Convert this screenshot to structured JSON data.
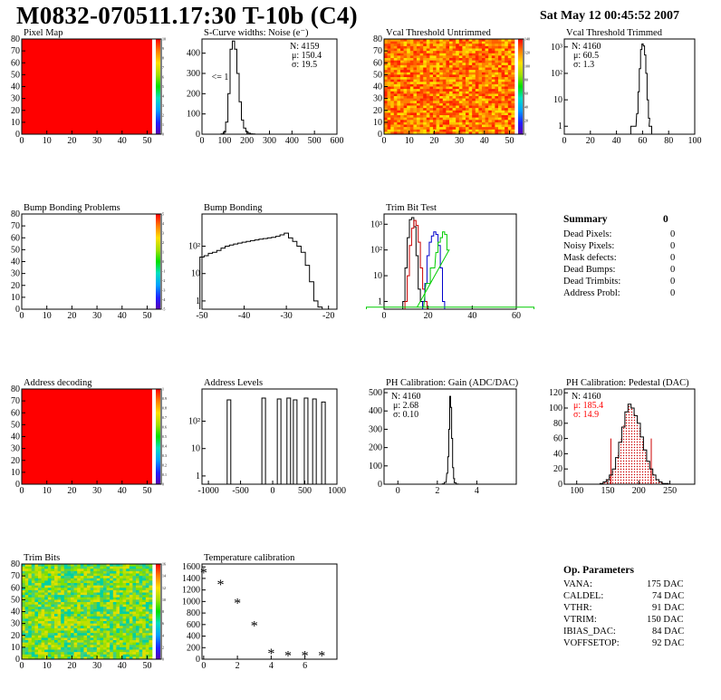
{
  "header": {
    "title": "M0832-070511.17:30 T-10b (C4)",
    "date": "Sat May 12 00:45:52 2007"
  },
  "colors": {
    "hist_line": "#000000",
    "heat_red": "#ff0000",
    "green_series": "#00cc00",
    "red_series": "#cc0000",
    "blue_series": "#0000cc",
    "stat_red": "#ff0000"
  },
  "summary": {
    "title": "Summary",
    "total": "0",
    "rows": [
      {
        "label": "Dead Pixels:",
        "value": "0"
      },
      {
        "label": "Noisy Pixels:",
        "value": "0"
      },
      {
        "label": "Mask defects:",
        "value": "0"
      },
      {
        "label": "Dead Bumps:",
        "value": "0"
      },
      {
        "label": "Dead Trimbits:",
        "value": "0"
      },
      {
        "label": "Address Probl:",
        "value": "0"
      }
    ]
  },
  "op_params": {
    "title": "Op. Parameters",
    "rows": [
      {
        "label": "VANA:",
        "value": "175 DAC"
      },
      {
        "label": "CALDEL:",
        "value": "74 DAC"
      },
      {
        "label": "VTHR:",
        "value": "91 DAC"
      },
      {
        "label": "VTRIM:",
        "value": "150 DAC"
      },
      {
        "label": "IBIAS_DAC:",
        "value": "84 DAC"
      },
      {
        "label": "VOFFSETOP:",
        "value": "92 DAC"
      }
    ]
  },
  "chart_data": [
    {
      "id": "pixel-map",
      "type": "heatmap",
      "title": "Pixel Map",
      "xlim": [
        0,
        52
      ],
      "ylim": [
        0,
        80
      ],
      "xticks": [
        "0",
        "10",
        "20",
        "30",
        "40",
        "50"
      ],
      "yticks": [
        "0",
        "10",
        "20",
        "30",
        "40",
        "50",
        "60",
        "70",
        "80"
      ],
      "fill": "uniform-red",
      "zlim": [
        0,
        10
      ],
      "zticks": [
        "0",
        "1",
        "2",
        "3",
        "4",
        "5",
        "6",
        "7",
        "8",
        "9",
        "10"
      ]
    },
    {
      "id": "scurve",
      "type": "bar",
      "title": "S-Curve widths: Noise (e⁻)",
      "xlim": [
        0,
        600
      ],
      "ylim": [
        0,
        470
      ],
      "xticks": [
        "0",
        "100",
        "200",
        "300",
        "400",
        "500",
        "600"
      ],
      "yticks": [
        "0",
        "100",
        "200",
        "300",
        "400"
      ],
      "stats": {
        "n": "N: 4159",
        "mu": "μ: 150.4",
        "sigma": "σ: 19.5"
      },
      "annotation": "<= 1",
      "x": [
        90,
        100,
        110,
        120,
        130,
        140,
        150,
        160,
        170,
        180,
        190,
        200,
        210,
        220,
        230
      ],
      "values": [
        2,
        10,
        60,
        200,
        420,
        460,
        420,
        300,
        160,
        70,
        30,
        12,
        5,
        2,
        1
      ]
    },
    {
      "id": "vcal-untrimmed",
      "type": "heatmap",
      "title": "Vcal Threshold Untrimmed",
      "xlim": [
        0,
        52
      ],
      "ylim": [
        0,
        80
      ],
      "xticks": [
        "0",
        "10",
        "20",
        "30",
        "40",
        "50"
      ],
      "yticks": [
        "0",
        "10",
        "20",
        "30",
        "40",
        "50",
        "60",
        "70",
        "80"
      ],
      "fill": "noisy-orange",
      "zlim": [
        0,
        140
      ],
      "zticks": [
        "0",
        "20",
        "40",
        "60",
        "80",
        "100",
        "120",
        "140"
      ]
    },
    {
      "id": "vcal-trimmed",
      "type": "bar",
      "title": "Vcal Threshold Trimmed",
      "log": true,
      "xlim": [
        0,
        100
      ],
      "ylim": [
        0.5,
        2000
      ],
      "xticks": [
        "0",
        "20",
        "40",
        "60",
        "80",
        "100"
      ],
      "yticks": [
        "1",
        "10",
        "10²",
        "10³"
      ],
      "stats": {
        "n": "N: 4160",
        "mu": "μ: 60.5",
        "sigma": "σ:  1.3"
      },
      "x": [
        52,
        54,
        56,
        57,
        58,
        59,
        60,
        61,
        62,
        63,
        64,
        65,
        66
      ],
      "values": [
        1,
        1,
        3,
        20,
        150,
        800,
        1300,
        1100,
        500,
        100,
        10,
        2,
        1
      ]
    },
    {
      "id": "bump-problems",
      "type": "heatmap",
      "title": "Bump Bonding Problems",
      "xlim": [
        0,
        52
      ],
      "ylim": [
        0,
        80
      ],
      "xticks": [
        "0",
        "10",
        "20",
        "30",
        "40",
        "50"
      ],
      "yticks": [
        "0",
        "10",
        "20",
        "30",
        "40",
        "50",
        "60",
        "70",
        "80"
      ],
      "fill": "empty",
      "zlim": [
        -5,
        5
      ],
      "zticks": [
        "-5",
        "-4",
        "-3",
        "-2",
        "-1",
        "0",
        "1",
        "2",
        "3",
        "4",
        "5"
      ]
    },
    {
      "id": "bump-bonding",
      "type": "bar",
      "title": "Bump Bonding",
      "log": true,
      "xlim": [
        -50,
        -18
      ],
      "ylim": [
        0.5,
        1500
      ],
      "xticks": [
        "-50",
        "-40",
        "-30",
        "-20"
      ],
      "yticks": [
        "1",
        "10",
        "10²"
      ],
      "x": [
        -50,
        -49,
        -48,
        -47,
        -46,
        -45,
        -44,
        -43,
        -42,
        -41,
        -40,
        -39,
        -38,
        -37,
        -36,
        -35,
        -34,
        -33,
        -32,
        -31,
        -30,
        -29,
        -28,
        -27,
        -26,
        -25,
        -24,
        -23,
        -22
      ],
      "values": [
        40,
        45,
        55,
        60,
        70,
        85,
        100,
        110,
        120,
        130,
        140,
        150,
        160,
        170,
        180,
        190,
        200,
        210,
        230,
        260,
        300,
        200,
        150,
        100,
        60,
        20,
        5,
        1,
        0.6
      ]
    },
    {
      "id": "trim-bit-test",
      "type": "line",
      "title": "Trim Bit Test",
      "log": true,
      "xlim": [
        0,
        60
      ],
      "ylim": [
        0.5,
        2500
      ],
      "xticks": [
        "0",
        "20",
        "40",
        "60"
      ],
      "yticks": [
        "1",
        "10",
        "10²",
        "10³"
      ],
      "series": [
        {
          "color": "#000000",
          "x": [
            9,
            10,
            11,
            12,
            13,
            14,
            15,
            16,
            17
          ],
          "values": [
            1,
            20,
            300,
            1500,
            1800,
            800,
            60,
            3,
            1
          ]
        },
        {
          "color": "#cc0000",
          "x": [
            10,
            11,
            12,
            13,
            14,
            15,
            16,
            17,
            18,
            19
          ],
          "values": [
            1,
            10,
            150,
            700,
            1400,
            900,
            200,
            20,
            3,
            1
          ]
        },
        {
          "color": "#0000cc",
          "x": [
            18,
            19,
            20,
            21,
            22,
            23,
            24,
            25,
            26,
            27
          ],
          "values": [
            1,
            5,
            60,
            200,
            350,
            500,
            400,
            150,
            20,
            1
          ]
        },
        {
          "color": "#00cc00",
          "x": [
            0,
            16,
            20,
            22,
            24,
            25,
            26,
            27,
            28,
            29,
            30,
            60
          ],
          "values": [
            0.6,
            0.6,
            5,
            20,
            80,
            200,
            300,
            500,
            400,
            100,
            0.6,
            0.6
          ]
        }
      ]
    },
    {
      "id": "address-decoding",
      "type": "heatmap",
      "title": "Address decoding",
      "xlim": [
        0,
        52
      ],
      "ylim": [
        0,
        80
      ],
      "xticks": [
        "0",
        "10",
        "20",
        "30",
        "40",
        "50"
      ],
      "yticks": [
        "0",
        "10",
        "20",
        "30",
        "40",
        "50",
        "60",
        "70",
        "80"
      ],
      "fill": "uniform-red",
      "zlim": [
        0,
        1
      ],
      "zticks": [
        "0",
        "0.1",
        "0.2",
        "0.3",
        "0.4",
        "0.5",
        "0.6",
        "0.7",
        "0.8",
        "0.9",
        "1"
      ]
    },
    {
      "id": "address-levels",
      "type": "bar",
      "title": "Address Levels",
      "log": true,
      "xlim": [
        -1100,
        1000
      ],
      "ylim": [
        0.5,
        1500
      ],
      "xticks": [
        "-1000",
        "-500",
        "0",
        "500",
        "1000"
      ],
      "yticks": [
        "1",
        "10",
        "10²"
      ],
      "x": [
        -680,
        -140,
        100,
        250,
        350,
        520,
        650,
        790
      ],
      "values": [
        600,
        700,
        650,
        700,
        600,
        700,
        650,
        500
      ]
    },
    {
      "id": "ph-gain",
      "type": "bar",
      "title": "PH Calibration: Gain (ADC/DAC)",
      "xlim": [
        -0.7,
        6
      ],
      "ylim": [
        0,
        520
      ],
      "xticks": [
        "0",
        "2",
        "4"
      ],
      "yticks": [
        "0",
        "100",
        "200",
        "300",
        "400",
        "500"
      ],
      "stats": {
        "n": "N: 4160",
        "mu": "μ: 2.68",
        "sigma": "σ: 0.10"
      },
      "x": [
        2.3,
        2.4,
        2.5,
        2.55,
        2.6,
        2.65,
        2.7,
        2.75,
        2.8,
        2.85,
        2.9,
        3.0
      ],
      "values": [
        2,
        10,
        60,
        150,
        300,
        480,
        420,
        250,
        90,
        30,
        8,
        1
      ]
    },
    {
      "id": "ph-pedestal",
      "type": "bar",
      "title": "PH Calibration: Pedestal (DAC)",
      "xlim": [
        80,
        290
      ],
      "ylim": [
        0,
        125
      ],
      "xticks": [
        "100",
        "150",
        "200",
        "250"
      ],
      "yticks": [
        "0",
        "20",
        "40",
        "60",
        "80",
        "100",
        "120"
      ],
      "stats": {
        "n": "N: 4160",
        "mu": "μ: 185.4",
        "sigma": "σ: 14.9"
      },
      "cut_lines": [
        155,
        220
      ],
      "x": [
        140,
        145,
        150,
        155,
        160,
        165,
        170,
        175,
        180,
        185,
        190,
        195,
        200,
        205,
        210,
        215,
        220,
        225,
        230,
        235,
        240,
        245
      ],
      "values": [
        1,
        3,
        6,
        12,
        20,
        35,
        55,
        75,
        95,
        105,
        100,
        90,
        80,
        62,
        45,
        30,
        20,
        12,
        6,
        3,
        1,
        1
      ]
    },
    {
      "id": "trim-bits",
      "type": "heatmap",
      "title": "Trim Bits",
      "xlim": [
        0,
        52
      ],
      "ylim": [
        0,
        80
      ],
      "xticks": [
        "0",
        "10",
        "20",
        "30",
        "40",
        "50"
      ],
      "yticks": [
        "0",
        "10",
        "20",
        "30",
        "40",
        "50",
        "60",
        "70",
        "80"
      ],
      "fill": "noisy-green",
      "zlim": [
        0,
        16
      ],
      "zticks": [
        "0",
        "2",
        "4",
        "6",
        "8",
        "10",
        "12",
        "14",
        "16"
      ]
    },
    {
      "id": "temperature",
      "type": "scatter",
      "title": "Temperature calibration",
      "xlim": [
        -0.1,
        7.9
      ],
      "ylim": [
        0,
        1650
      ],
      "xticks": [
        "0",
        "2",
        "4",
        "6"
      ],
      "yticks": [
        "0",
        "200",
        "400",
        "600",
        "800",
        "1000",
        "1200",
        "1400",
        "1600"
      ],
      "x": [
        0,
        1,
        2,
        3,
        4,
        5,
        6,
        7
      ],
      "values": [
        1480,
        1270,
        950,
        560,
        80,
        40,
        40,
        40
      ]
    }
  ]
}
